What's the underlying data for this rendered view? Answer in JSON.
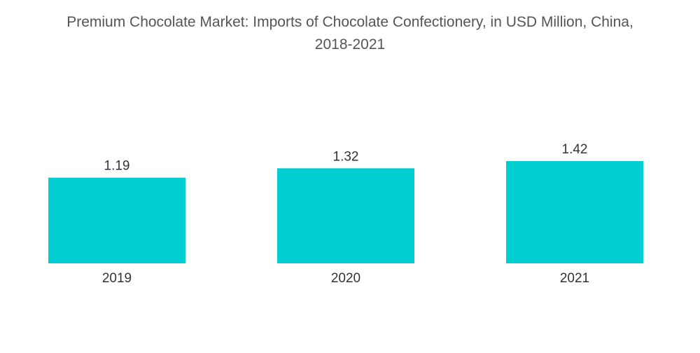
{
  "chart_data": {
    "type": "bar",
    "title": "Premium Chocolate Market: Imports of Chocolate Confectionery, in USD Million, China,",
    "subtitle": "2018-2021",
    "categories": [
      "2019",
      "2020",
      "2021"
    ],
    "values": [
      1.19,
      1.32,
      1.42
    ],
    "value_labels": [
      "1.19",
      "1.32",
      "1.42"
    ],
    "xlabel": "",
    "ylabel": "",
    "ylim": [
      0,
      1.42
    ],
    "grid": false,
    "bar_color": "#00CED1"
  }
}
